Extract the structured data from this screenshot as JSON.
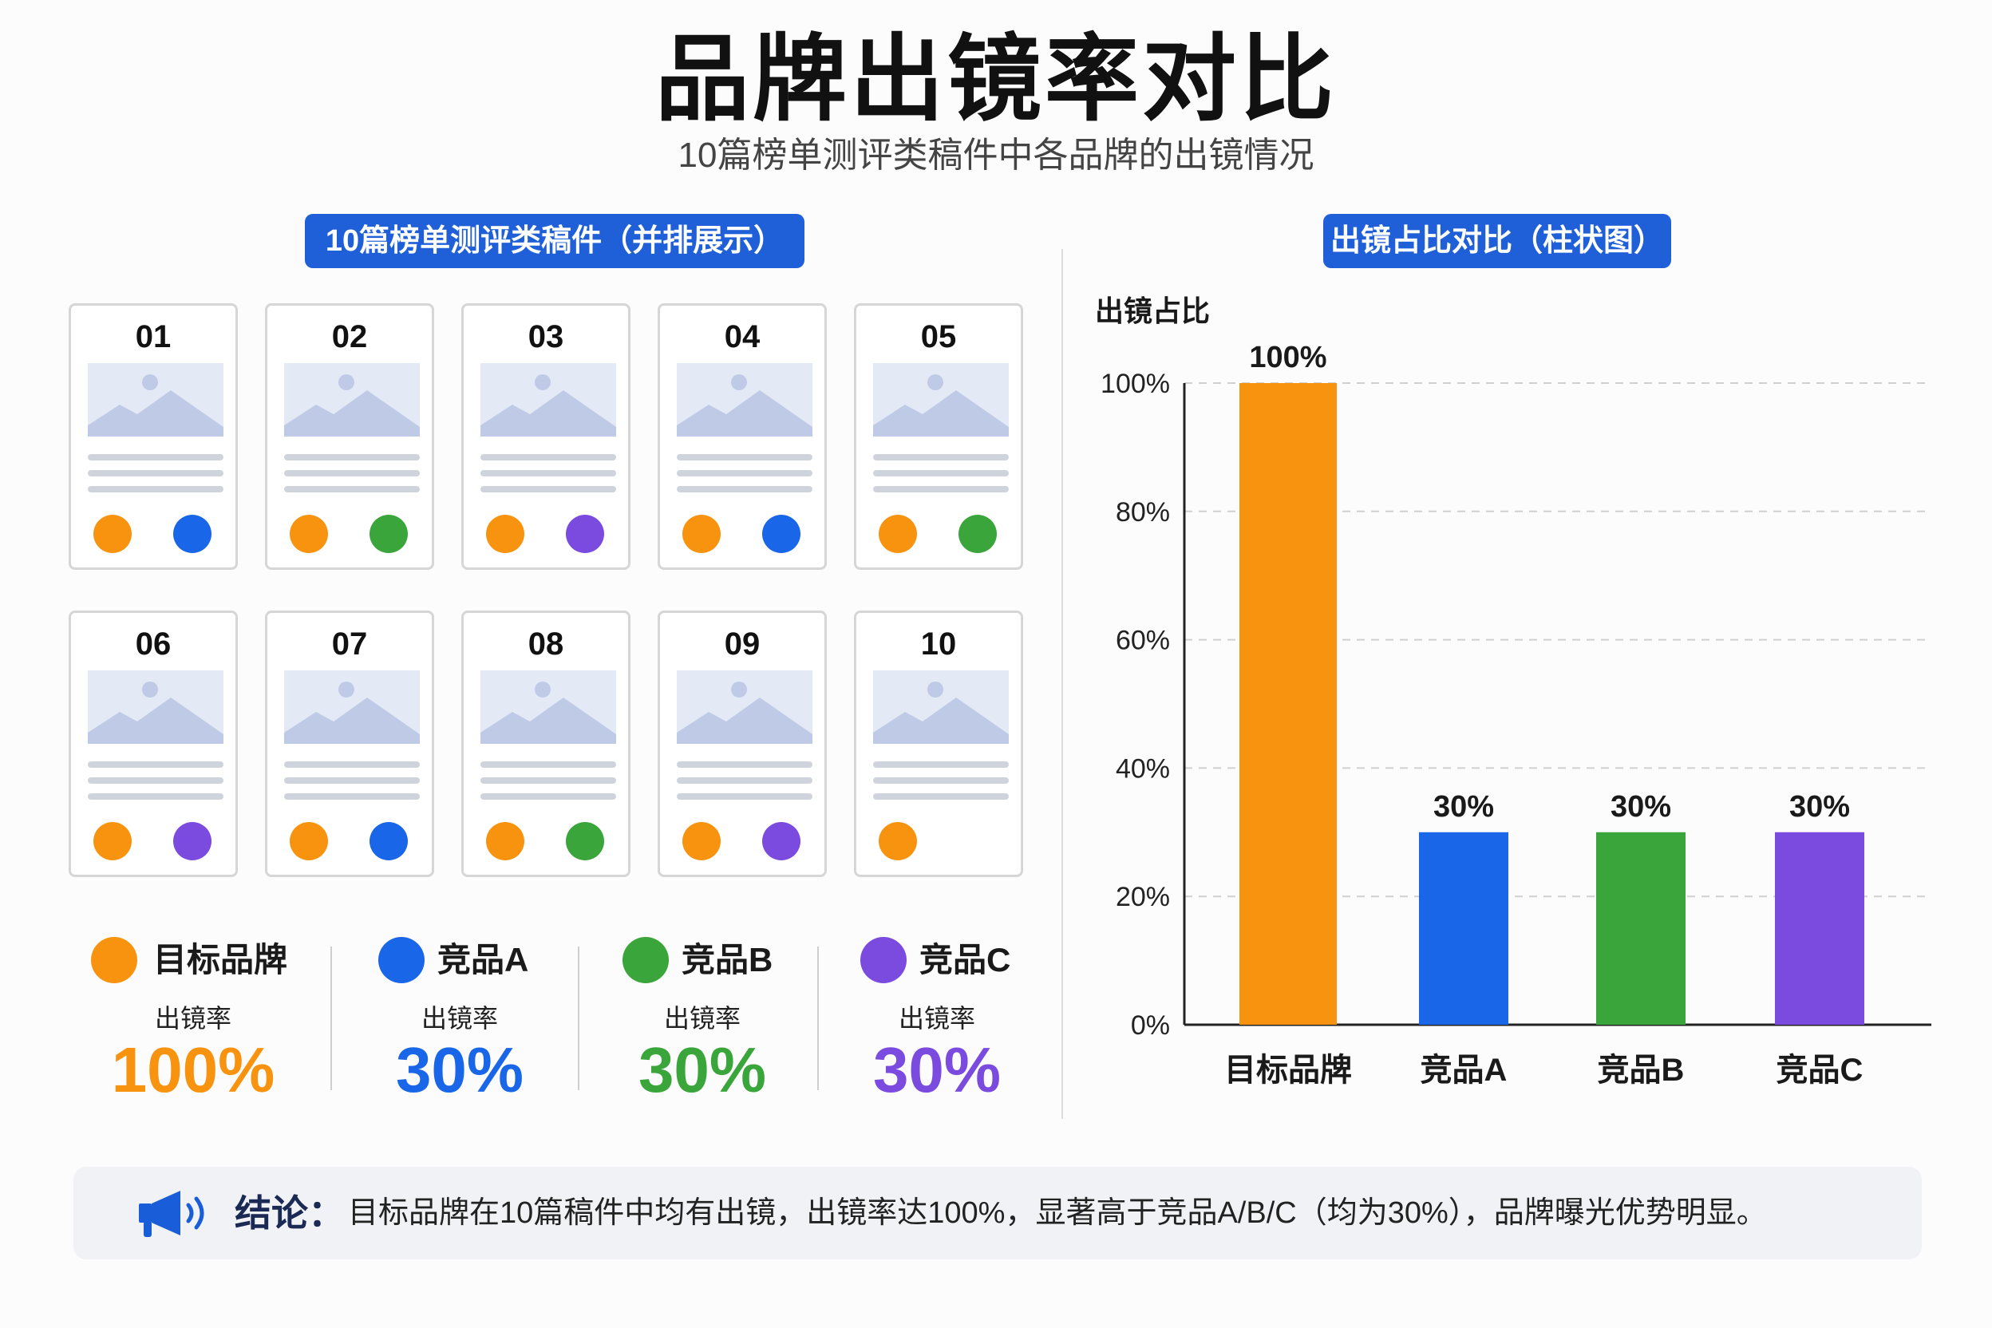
{
  "title": "品牌出镜率对比",
  "subtitle": "10篇榜单测评类稿件中各品牌的出镜情况",
  "left_panel": {
    "heading": "10篇榜单测评类稿件（并排展示）",
    "cards": [
      {
        "num": "01",
        "brands": [
          "target",
          "a"
        ]
      },
      {
        "num": "02",
        "brands": [
          "target",
          "b"
        ]
      },
      {
        "num": "03",
        "brands": [
          "target",
          "c"
        ]
      },
      {
        "num": "04",
        "brands": [
          "target",
          "a"
        ]
      },
      {
        "num": "05",
        "brands": [
          "target",
          "b"
        ]
      },
      {
        "num": "06",
        "brands": [
          "target",
          "c"
        ]
      },
      {
        "num": "07",
        "brands": [
          "target",
          "a"
        ]
      },
      {
        "num": "08",
        "brands": [
          "target",
          "b"
        ]
      },
      {
        "num": "09",
        "brands": [
          "target",
          "c"
        ]
      },
      {
        "num": "10",
        "brands": [
          "target"
        ]
      }
    ]
  },
  "colors": {
    "target": "#f7930f",
    "a": "#1a66e8",
    "b": "#3aa53a",
    "c": "#7b4be0"
  },
  "legend": [
    {
      "key": "target",
      "name": "目标品牌",
      "sub": "出镜率",
      "value": "100%"
    },
    {
      "key": "a",
      "name": "竞品A",
      "sub": "出镜率",
      "value": "30%"
    },
    {
      "key": "b",
      "name": "竞品B",
      "sub": "出镜率",
      "value": "30%"
    },
    {
      "key": "c",
      "name": "竞品C",
      "sub": "出镜率",
      "value": "30%"
    }
  ],
  "right_panel": {
    "heading": "出镜占比对比（柱状图）"
  },
  "chart_data": {
    "type": "bar",
    "title": "",
    "ylabel": "出镜占比",
    "xlabel": "",
    "categories": [
      "目标品牌",
      "竞品A",
      "竞品B",
      "竞品C"
    ],
    "values": [
      100,
      30,
      30,
      30
    ],
    "value_labels": [
      "100%",
      "30%",
      "30%",
      "30%"
    ],
    "colors": [
      "#f7930f",
      "#1a66e8",
      "#3aa53a",
      "#7b4be0"
    ],
    "ylim": [
      0,
      100
    ],
    "yticks": [
      0,
      20,
      40,
      60,
      80,
      100
    ],
    "ytick_labels": [
      "0%",
      "20%",
      "40%",
      "60%",
      "80%",
      "100%"
    ],
    "grid": "dashed-horizontal",
    "legend": "none"
  },
  "conclusion": {
    "label": "结论：",
    "text": "目标品牌在10篇稿件中均有出镜，出镜率达100%，显著高于竞品A/B/C（均为30%），品牌曝光优势明显。",
    "icon": "megaphone-icon"
  }
}
